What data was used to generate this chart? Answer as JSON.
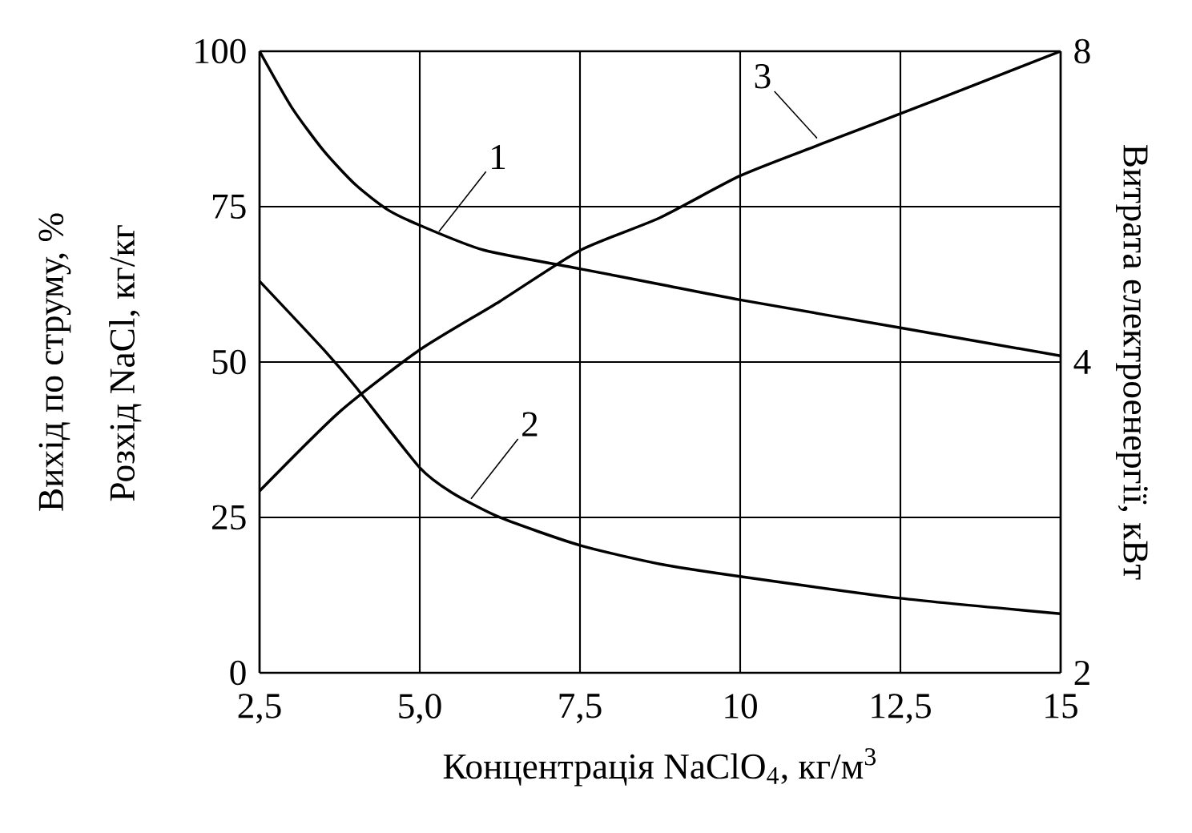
{
  "chart_data": {
    "type": "line",
    "xlabel": "Концентрація NaClO$_{4}$, кг/м$^{3}$",
    "ylabel": "Вихід по струму, %",
    "y2label": "Витрата електроенергії, кВт",
    "xlim": [
      2.5,
      15
    ],
    "xticks": [
      {
        "value": 2.5,
        "label": "2,5"
      },
      {
        "value": 5,
        "label": "5,0"
      },
      {
        "value": 7.5,
        "label": "7,5"
      },
      10,
      {
        "value": 12.5,
        "label": "12,5"
      },
      15
    ],
    "ylim": [
      0,
      100
    ],
    "yticks": [
      0,
      25,
      50,
      75,
      100
    ],
    "y2lim": [
      2,
      8
    ],
    "y2ticks": [
      2,
      4,
      8
    ],
    "log": "y2",
    "grid": true,
    "marker": "none",
    "line_style": "solid",
    "series": [
      {
        "color": "#000000",
        "x": [
          2.5,
          3,
          3.5,
          4,
          4.5,
          5,
          6,
          7.5,
          8.75,
          10,
          12.5,
          15
        ],
        "values": [
          100,
          91,
          84,
          78.5,
          74.5,
          72,
          68,
          65,
          62.5,
          60,
          55.5,
          51
        ]
      },
      {
        "color": "#000000",
        "x": [
          2.5,
          3.5,
          4,
          5,
          5.5,
          6.25,
          7.5,
          8.75,
          10,
          12.5,
          15
        ],
        "values": [
          63,
          52,
          46,
          33,
          29,
          25,
          20.5,
          17.5,
          15.5,
          12,
          9.5
        ]
      },
      {
        "color": "#000000",
        "axis": "y2",
        "x": [
          2.5,
          3.75,
          5,
          6.25,
          7.5,
          8.75,
          10,
          11.25,
          12.5,
          13.75,
          15
        ],
        "values": [
          3,
          3.58,
          4.11,
          4.58,
          5.13,
          5.52,
          6.06,
          6.5,
          6.96,
          7.46,
          8
        ]
      }
    ],
    "annotations": [
      {
        "text": "1",
        "x": 5.3,
        "y": 71
      },
      {
        "text": "2",
        "x": 5.8,
        "y": 28
      },
      {
        "text": "3",
        "x": 11.2,
        "y": 86
      },
      "Розхід NaCl, кг/кг"
    ]
  }
}
